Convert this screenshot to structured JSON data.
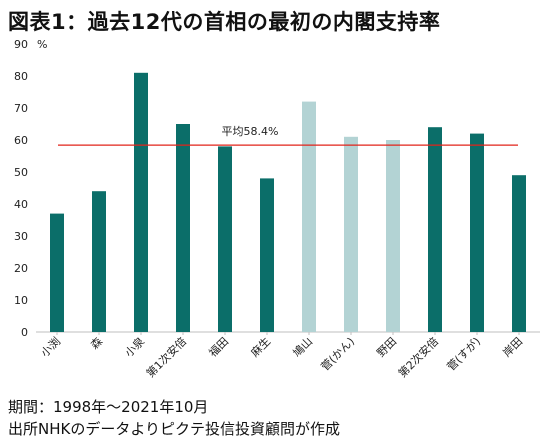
{
  "title": "図表1：過去12代の首相の最初の内閣支持率",
  "footer": {
    "period": "期間：1998年～2021年10月",
    "source": "出所NHKのデータよりピクテ投信投資顧問が作成"
  },
  "colors": {
    "bar_dark": "#0b6e69",
    "bar_light": "#b3d3d4",
    "average_line": "#e2231a"
  },
  "chart_data": {
    "type": "bar",
    "title": "図表1：過去12代の首相の最初の内閣支持率",
    "ylabel": "%",
    "xlabel": "",
    "ylim": [
      0,
      90
    ],
    "yticks": [
      0,
      10,
      20,
      30,
      40,
      50,
      60,
      70,
      80,
      90
    ],
    "grid": false,
    "categories": [
      "小渕",
      "森",
      "小泉",
      "第1次安倍",
      "福田",
      "麻生",
      "鳩山",
      "菅(かん)",
      "野田",
      "第2次安倍",
      "菅(すが)",
      "岸田"
    ],
    "values": [
      37,
      44,
      81,
      65,
      58,
      48,
      72,
      61,
      60,
      64,
      62,
      49
    ],
    "highlight": [
      "dark",
      "dark",
      "dark",
      "dark",
      "dark",
      "dark",
      "light",
      "light",
      "light",
      "dark",
      "dark",
      "dark"
    ],
    "average": {
      "value": 58.4,
      "label": "平均58.4%"
    }
  }
}
